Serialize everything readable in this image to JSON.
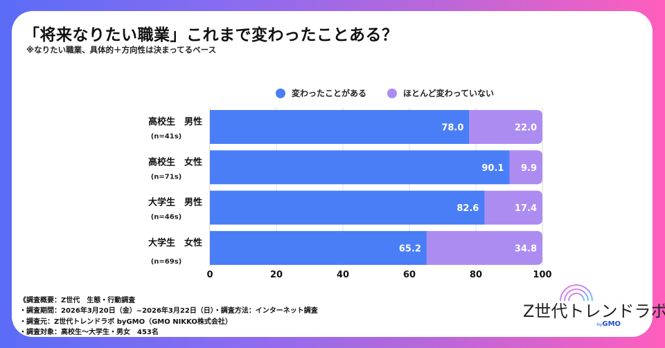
{
  "title": "「将来なりたい職業」これまで変わったことある？",
  "subtitle": "※なりたい職業、具体的＋方向性は決まってるベース",
  "colors": {
    "changed": "#4a7ef7",
    "not_changed": "#ad8cf2",
    "background_left": "#5b6cf6",
    "background_right": "#ff5ebd"
  },
  "chart_data": {
    "type": "bar",
    "orientation": "horizontal",
    "stacked": true,
    "title": "「将来なりたい職業」これまで変わったことある？",
    "subtitle": "※なりたい職業、具体的＋方向性は決まってるベース",
    "categories": [
      {
        "label": "高校生　男性",
        "n": "(n=41s)"
      },
      {
        "label": "高校生　女性",
        "n": "(n=71s)"
      },
      {
        "label": "大学生　男性",
        "n": "(n=46s)"
      },
      {
        "label": "大学生　女性",
        "n": "(n=69s)"
      }
    ],
    "series": [
      {
        "name": "変わったことがある",
        "color": "#4a7ef7",
        "values": [
          78.0,
          90.1,
          82.6,
          65.2
        ]
      },
      {
        "name": "ほとんど変わっていない",
        "color": "#ad8cf2",
        "values": [
          22.0,
          9.9,
          17.4,
          34.8
        ]
      }
    ],
    "xlim": [
      0,
      100
    ],
    "xticks": [
      "0",
      "20",
      "40",
      "60",
      "80",
      "100"
    ],
    "grid": true,
    "legend_position": "top",
    "xlabel": "",
    "ylabel": ""
  },
  "footer": {
    "lines": [
      "《調査概要：Z世代　生態・行動調査",
      "・調査期間：2026年3月20日（金）~2026年3月22日（日）・調査方法：インターネット調査",
      "・調査元：Z世代トレンドラボ byGMO（GMO NIKKO株式会社）",
      "・調査対象：高校生～大学生・男女　453名"
    ]
  },
  "logo": {
    "brand": "Z世代トレンドラボ",
    "by": "by",
    "company": "GMO"
  }
}
